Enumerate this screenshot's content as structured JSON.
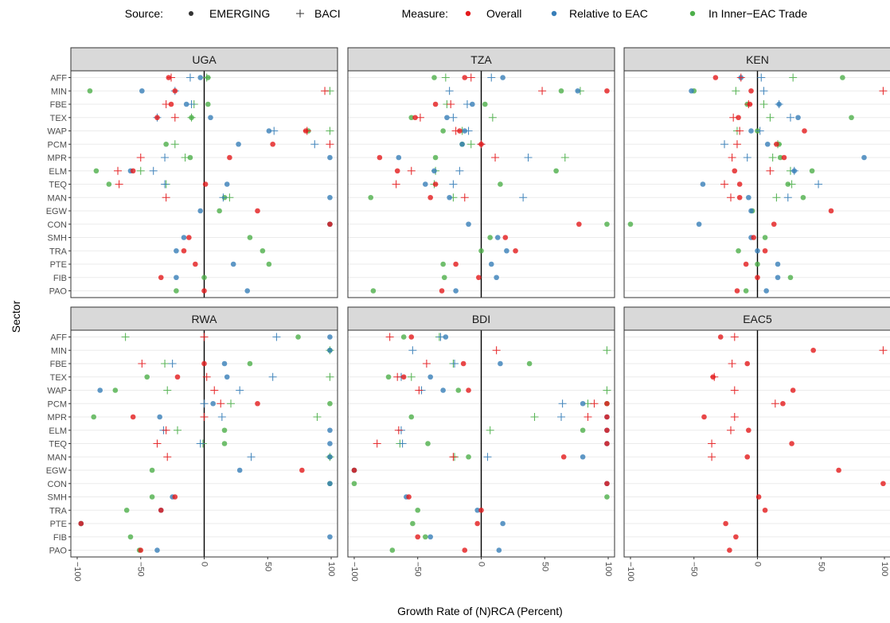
{
  "legend": {
    "source_title": "Source:",
    "source_items": [
      {
        "label": "EMERGING",
        "glyph": "dot"
      },
      {
        "label": "BACI",
        "glyph": "plus"
      }
    ],
    "measure_title": "Measure:",
    "measure_items": [
      {
        "label": "Overall",
        "color": "#E41A1C"
      },
      {
        "label": "Relative to EAC",
        "color": "#377EB8"
      },
      {
        "label": "In Inner−EAC Trade",
        "color": "#4DAF4A"
      }
    ]
  },
  "chart_data": {
    "type": "scatter",
    "xlabel": "Growth Rate of (N)RCA (Percent)",
    "ylabel": "Sector",
    "xlim": [
      -105,
      105
    ],
    "x_ticks": [
      -100,
      -50,
      0,
      50,
      100
    ],
    "x_tick_labels": [
      "−100",
      "−50",
      "0",
      "50",
      "100"
    ],
    "reference_line_x": 0,
    "sectors": [
      "AFF",
      "MIN",
      "FBE",
      "TEX",
      "WAP",
      "PCM",
      "MPR",
      "ELM",
      "TEQ",
      "MAN",
      "EGW",
      "CON",
      "SMH",
      "TRA",
      "PTE",
      "FIB",
      "PAO"
    ],
    "panels": [
      {
        "title": "UGA",
        "points": {
          "EMERGING": {
            "Overall": [
              -28,
              -23,
              -26,
              -37,
              80,
              54,
              20,
              -56,
              1,
              null,
              42,
              99,
              -12,
              -16,
              -7,
              -34,
              0
            ],
            "Relative to EAC": [
              -3,
              -49,
              -14,
              5,
              51,
              27,
              99,
              -58,
              18,
              99,
              -3,
              99,
              -16,
              -22,
              23,
              -22,
              34
            ],
            "In Inner-EAC Trade": [
              3,
              -90,
              3,
              -10,
              82,
              -30,
              -11,
              -85,
              -75,
              16,
              12,
              99,
              36,
              46,
              51,
              0,
              -22
            ]
          },
          "BACI": {
            "Overall": [
              -26,
              95,
              -30,
              -23,
              81,
              99,
              -50,
              -68,
              -67,
              -30,
              null,
              null,
              null,
              null,
              null,
              null,
              null
            ],
            "Relative to EAC": [
              -11,
              -23,
              -10,
              -37,
              55,
              87,
              -31,
              -40,
              -31,
              15,
              null,
              null,
              null,
              null,
              null,
              null,
              null
            ],
            "In Inner-EAC Trade": [
              2,
              99,
              -8,
              -10,
              99,
              -23,
              -15,
              -50,
              -30,
              20,
              null,
              null,
              null,
              null,
              null,
              null,
              null
            ]
          }
        }
      },
      {
        "title": "TZA",
        "points": {
          "EMERGING": {
            "Overall": [
              -13,
              99,
              -36,
              -52,
              -17,
              0,
              -80,
              -66,
              -36,
              -40,
              null,
              77,
              19,
              27,
              -20,
              -2,
              -31
            ],
            "Relative to EAC": [
              17,
              76,
              -7,
              -27,
              -13,
              -15,
              -65,
              -37,
              -44,
              -25,
              null,
              -10,
              13,
              20,
              8,
              12,
              -20
            ],
            "In Inner-EAC Trade": [
              -37,
              63,
              3,
              -55,
              -30,
              -15,
              -36,
              59,
              15,
              -87,
              null,
              99,
              7,
              0,
              -30,
              -29,
              -85
            ]
          },
          "BACI": {
            "Overall": [
              -8,
              48,
              -24,
              -48,
              -20,
              0,
              11,
              -55,
              -67,
              -13,
              null,
              null,
              null,
              null,
              null,
              null,
              null
            ],
            "Relative to EAC": [
              8,
              -25,
              -11,
              -22,
              -10,
              0,
              37,
              -17,
              -22,
              33,
              null,
              null,
              null,
              null,
              null,
              null,
              null
            ],
            "In Inner-EAC Trade": [
              -28,
              78,
              -27,
              9,
              -15,
              -8,
              66,
              -36,
              -37,
              -22,
              null,
              null,
              null,
              null,
              null,
              null,
              null
            ]
          }
        }
      },
      {
        "title": "KEN",
        "points": {
          "EMERGING": {
            "Overall": [
              -33,
              -5,
              -6,
              -15,
              37,
              15,
              21,
              -18,
              -14,
              -14,
              58,
              13,
              -3,
              6,
              -9,
              0,
              -16
            ],
            "Relative to EAC": [
              -13,
              -52,
              17,
              32,
              -5,
              8,
              84,
              29,
              -43,
              -7,
              -5,
              -46,
              -5,
              0,
              16,
              16,
              7
            ],
            "In Inner-EAC Trade": [
              67,
              -50,
              -8,
              74,
              0,
              17,
              18,
              43,
              24,
              36,
              -4,
              -100,
              6,
              -15,
              0,
              26,
              -9
            ]
          },
          "BACI": {
            "Overall": [
              -13,
              99,
              -7,
              -19,
              -14,
              -16,
              -20,
              10,
              -26,
              -21,
              null,
              null,
              null,
              null,
              null,
              null,
              null
            ],
            "Relative to EAC": [
              3,
              5,
              17,
              26,
              2,
              -26,
              -8,
              29,
              48,
              24,
              null,
              null,
              null,
              null,
              null,
              null,
              null
            ],
            "In Inner-EAC Trade": [
              28,
              -17,
              5,
              10,
              -16,
              16,
              12,
              26,
              27,
              15,
              null,
              null,
              null,
              null,
              null,
              null,
              null
            ]
          }
        }
      },
      {
        "title": "RWA",
        "points": {
          "EMERGING": {
            "Overall": [
              null,
              null,
              0,
              -21,
              null,
              42,
              -56,
              null,
              null,
              null,
              77,
              null,
              -23,
              -34,
              -97,
              null,
              -50
            ],
            "Relative to EAC": [
              99,
              99,
              16,
              18,
              -82,
              7,
              -35,
              99,
              99,
              99,
              28,
              99,
              -25,
              -34,
              -97,
              99,
              -37
            ],
            "In Inner-EAC Trade": [
              74,
              99,
              36,
              -45,
              -70,
              99,
              -87,
              16,
              16,
              99,
              -41,
              99,
              -41,
              -61,
              -97,
              -58,
              -51
            ]
          },
          "BACI": {
            "Overall": [
              0,
              null,
              -49,
              2,
              8,
              13,
              0,
              -30,
              -37,
              -29,
              null,
              null,
              null,
              null,
              null,
              null,
              null
            ],
            "Relative to EAC": [
              57,
              null,
              -25,
              54,
              28,
              0,
              14,
              -32,
              -3,
              37,
              null,
              null,
              null,
              null,
              null,
              null,
              null
            ],
            "In Inner-EAC Trade": [
              -62,
              99,
              -31,
              99,
              -29,
              21,
              89,
              -21,
              -1,
              99,
              null,
              null,
              null,
              null,
              null,
              null,
              null
            ]
          }
        }
      },
      {
        "title": "BDI",
        "points": {
          "EMERGING": {
            "Overall": [
              -55,
              null,
              -14,
              -61,
              -10,
              99,
              99,
              99,
              99,
              65,
              -100,
              99,
              -57,
              0,
              -3,
              -50,
              -13
            ],
            "Relative to EAC": [
              -28,
              null,
              15,
              -40,
              -30,
              80,
              99,
              99,
              99,
              80,
              -100,
              99,
              -59,
              -3,
              17,
              -40,
              14
            ],
            "In Inner-EAC Trade": [
              -61,
              null,
              38,
              -73,
              -18,
              99,
              -55,
              80,
              -42,
              -10,
              -100,
              -100,
              99,
              -50,
              -54,
              -44,
              -70
            ]
          },
          "BACI": {
            "Overall": [
              -72,
              12,
              -43,
              -66,
              -49,
              89,
              84,
              -65,
              -82,
              -22,
              null,
              null,
              null,
              null,
              null,
              null,
              null
            ],
            "Relative to EAC": [
              -32,
              -54,
              -21,
              -63,
              -47,
              64,
              63,
              -63,
              -62,
              5,
              null,
              null,
              null,
              null,
              null,
              null,
              null
            ],
            "In Inner-EAC Trade": [
              -33,
              99,
              -22,
              -55,
              99,
              84,
              42,
              7,
              -64,
              -21,
              null,
              null,
              null,
              null,
              null,
              null,
              null
            ]
          }
        }
      },
      {
        "title": "EAC5",
        "points": {
          "EMERGING": {
            "Overall": [
              -29,
              44,
              -8,
              -35,
              28,
              20,
              -42,
              -7,
              27,
              -8,
              64,
              99,
              1,
              6,
              -25,
              -17,
              -22
            ],
            "Relative to EAC": [
              null,
              null,
              null,
              null,
              null,
              null,
              null,
              null,
              null,
              null,
              null,
              null,
              null,
              null,
              null,
              null,
              null
            ],
            "In Inner-EAC Trade": [
              null,
              null,
              null,
              null,
              null,
              null,
              null,
              null,
              null,
              null,
              null,
              null,
              null,
              null,
              null,
              null,
              null
            ]
          },
          "BACI": {
            "Overall": [
              -18,
              99,
              -20,
              -34,
              -18,
              14,
              -18,
              -21,
              -36,
              -36,
              null,
              null,
              null,
              null,
              null,
              null,
              null
            ],
            "Relative to EAC": [
              null,
              null,
              null,
              null,
              null,
              null,
              null,
              null,
              null,
              null,
              null,
              null,
              null,
              null,
              null,
              null,
              null
            ],
            "In Inner-EAC Trade": [
              null,
              null,
              null,
              null,
              null,
              null,
              null,
              null,
              null,
              null,
              null,
              null,
              null,
              null,
              null,
              null,
              null
            ]
          }
        }
      }
    ]
  }
}
